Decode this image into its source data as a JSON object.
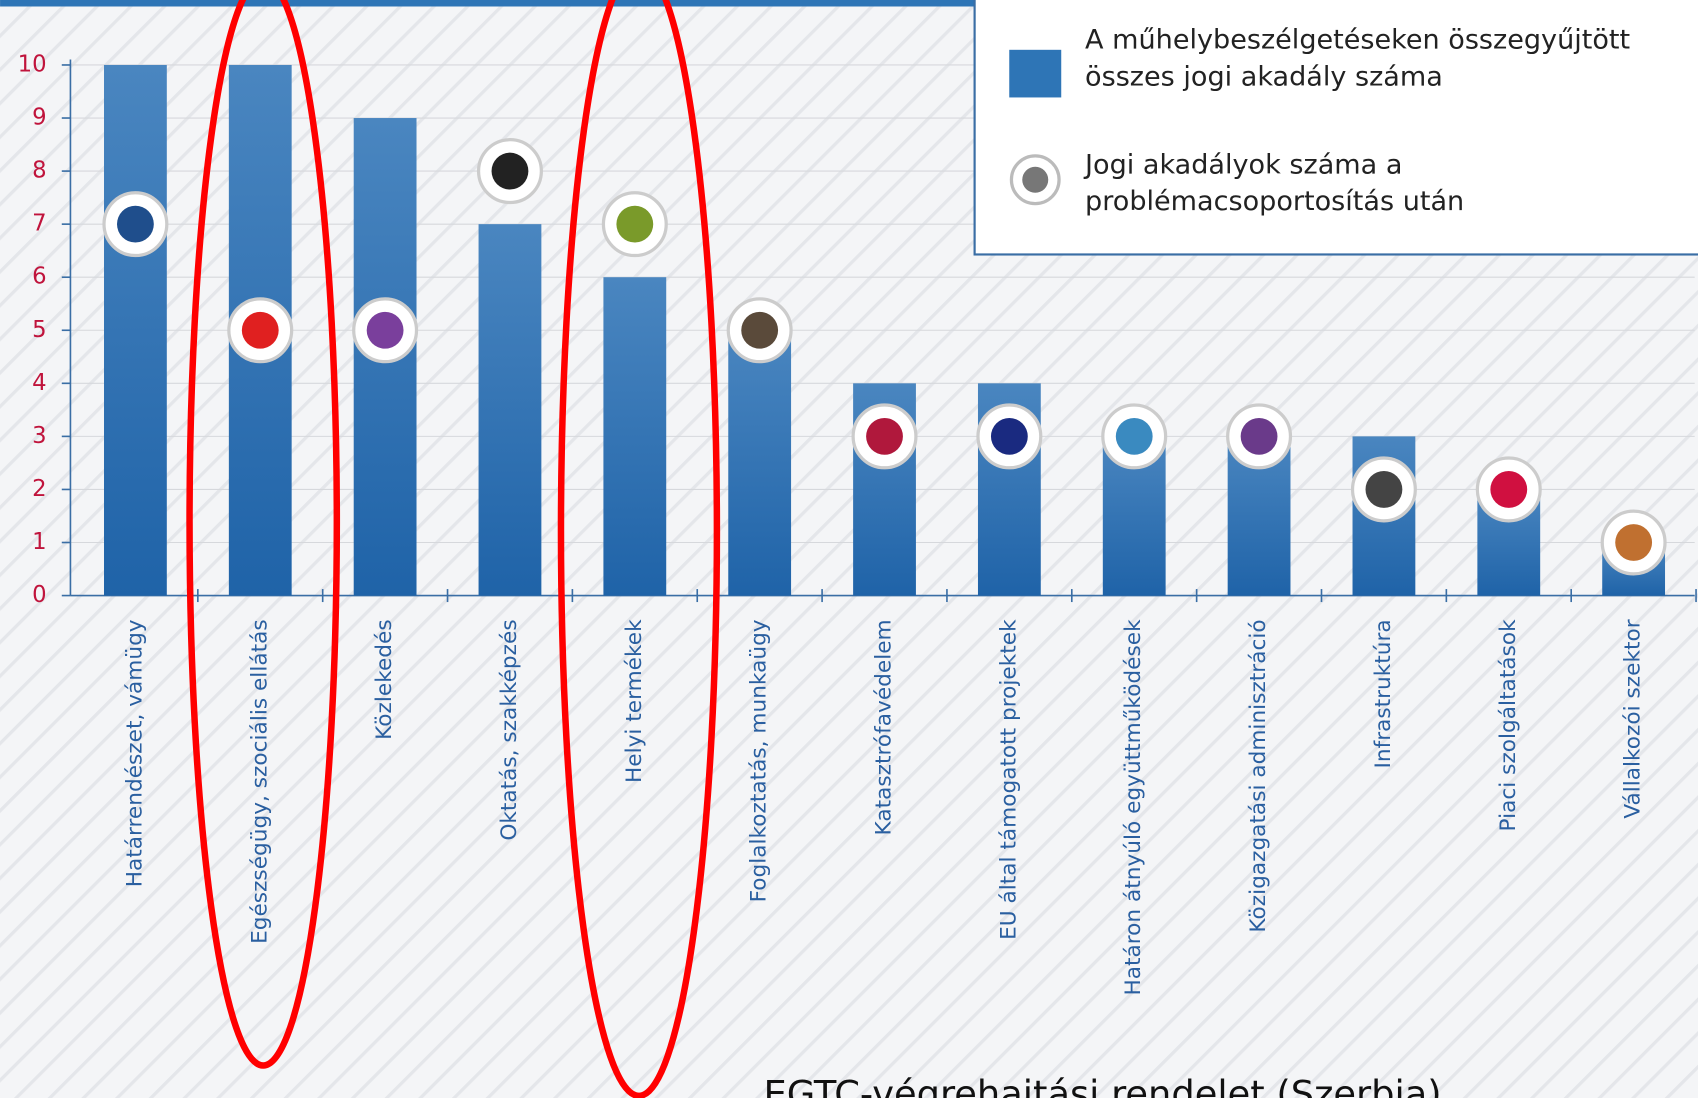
{
  "chart_data": {
    "type": "bar",
    "categories": [
      "Határrendészet, vámügy",
      "Egészségügy, szociális ellátás",
      "Közlekedés",
      "Oktatás, szakképzés",
      "Helyi termékek",
      "Foglalkoztatás, munkaügy",
      "Katasztrófavédelem",
      "EU által támogatott projektek",
      "Határon átnyúló együttműködések",
      "Közigazgatási adminisztráció",
      "Infrastruktúra",
      "Piaci szolgáltatások",
      "Vállalkozói szektor"
    ],
    "series": [
      {
        "name": "A műhelybeszélgetéseken összegyűjtött összes jogi akadály száma",
        "color": "#2e75b6",
        "values": [
          10,
          10,
          9,
          7,
          6,
          5,
          4,
          4,
          3,
          3,
          3,
          2,
          1
        ]
      },
      {
        "name": "Jogi akadályok száma a problémacsoportosítás után",
        "color": "#777777",
        "values": [
          7,
          5,
          5,
          8,
          7,
          5,
          3,
          3,
          3,
          3,
          2,
          2,
          1
        ],
        "marker_colors": [
          "#1f4e8c",
          "#e02020",
          "#7a3f9c",
          "#222222",
          "#7a9a2a",
          "#5a4a3a",
          "#b0183c",
          "#1a2a80",
          "#3a8ac0",
          "#6a3a8a",
          "#444444",
          "#d01040",
          "#c07030"
        ]
      }
    ],
    "ylim": [
      0,
      10
    ],
    "yticks": [
      0,
      1,
      2,
      3,
      4,
      5,
      6,
      7,
      8,
      9,
      10
    ],
    "grid": true,
    "annotation": "EGTC-végrehajtási rendelet (Szerbia)"
  }
}
